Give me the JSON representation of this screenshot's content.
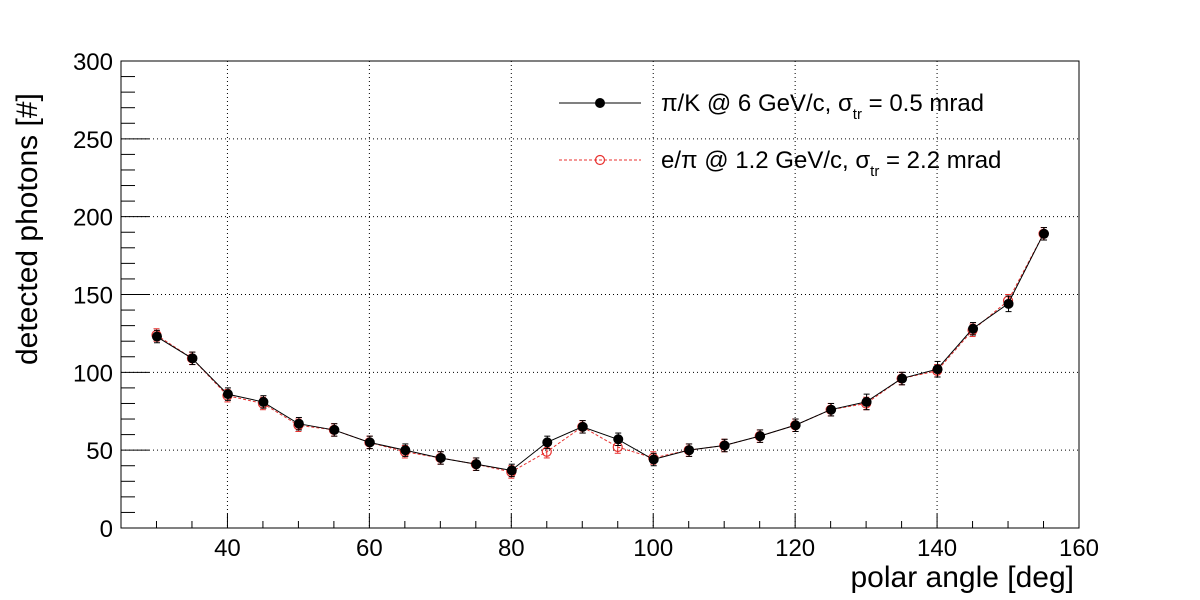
{
  "chart_data": {
    "type": "scatter",
    "xlabel": "polar angle [deg]",
    "ylabel": "detected photons [#]",
    "xlim": [
      25,
      160
    ],
    "ylim": [
      0,
      300
    ],
    "x_ticks": [
      40,
      60,
      80,
      100,
      120,
      140,
      160
    ],
    "y_ticks": [
      0,
      50,
      100,
      150,
      200,
      250,
      300
    ],
    "x_tick_labels": [
      "40",
      "60",
      "80",
      "100",
      "120",
      "140",
      "160"
    ],
    "y_tick_labels": [
      "0",
      "50",
      "100",
      "150",
      "200",
      "250",
      "300"
    ],
    "grid": "dotted",
    "legend_position": "top-right",
    "x": [
      30,
      35,
      40,
      45,
      50,
      55,
      60,
      65,
      70,
      75,
      80,
      85,
      90,
      95,
      100,
      105,
      110,
      115,
      120,
      125,
      130,
      135,
      140,
      145,
      150,
      155
    ],
    "series": [
      {
        "legend": {
          "main": "π/K @ 6 GeV/c, σ",
          "sub": "tr",
          "tail": " = 0.5 mrad"
        },
        "color": "#000000",
        "marker": "filled-circle",
        "line_style": "solid",
        "values": [
          123,
          109,
          86,
          81,
          67,
          63,
          55,
          50,
          45,
          41,
          37,
          55,
          65,
          57,
          44,
          50,
          53,
          59,
          66,
          76,
          81,
          96,
          102,
          128,
          144,
          189
        ],
        "errors": [
          4,
          4,
          4,
          4,
          4,
          4,
          4,
          4,
          4,
          4,
          4,
          4,
          4,
          4,
          4,
          4,
          4,
          4,
          4,
          4,
          5,
          4,
          5,
          4,
          5,
          4
        ]
      },
      {
        "legend": {
          "main": "e/π @ 1.2 GeV/c, σ",
          "sub": "tr",
          "tail": " = 2.2 mrad"
        },
        "color": "#e8312f",
        "marker": "open-circle",
        "line_style": "dashed",
        "values": [
          124,
          109,
          85,
          80,
          66,
          63,
          55,
          49,
          45,
          41,
          36,
          49,
          65,
          52,
          45,
          50,
          53,
          59,
          66,
          76,
          80,
          96,
          101,
          127,
          146,
          189
        ],
        "errors": [
          4,
          4,
          4,
          4,
          4,
          4,
          4,
          4,
          4,
          4,
          4,
          4,
          4,
          4,
          4,
          4,
          4,
          4,
          4,
          4,
          4,
          4,
          4,
          4,
          4,
          4
        ]
      }
    ]
  }
}
